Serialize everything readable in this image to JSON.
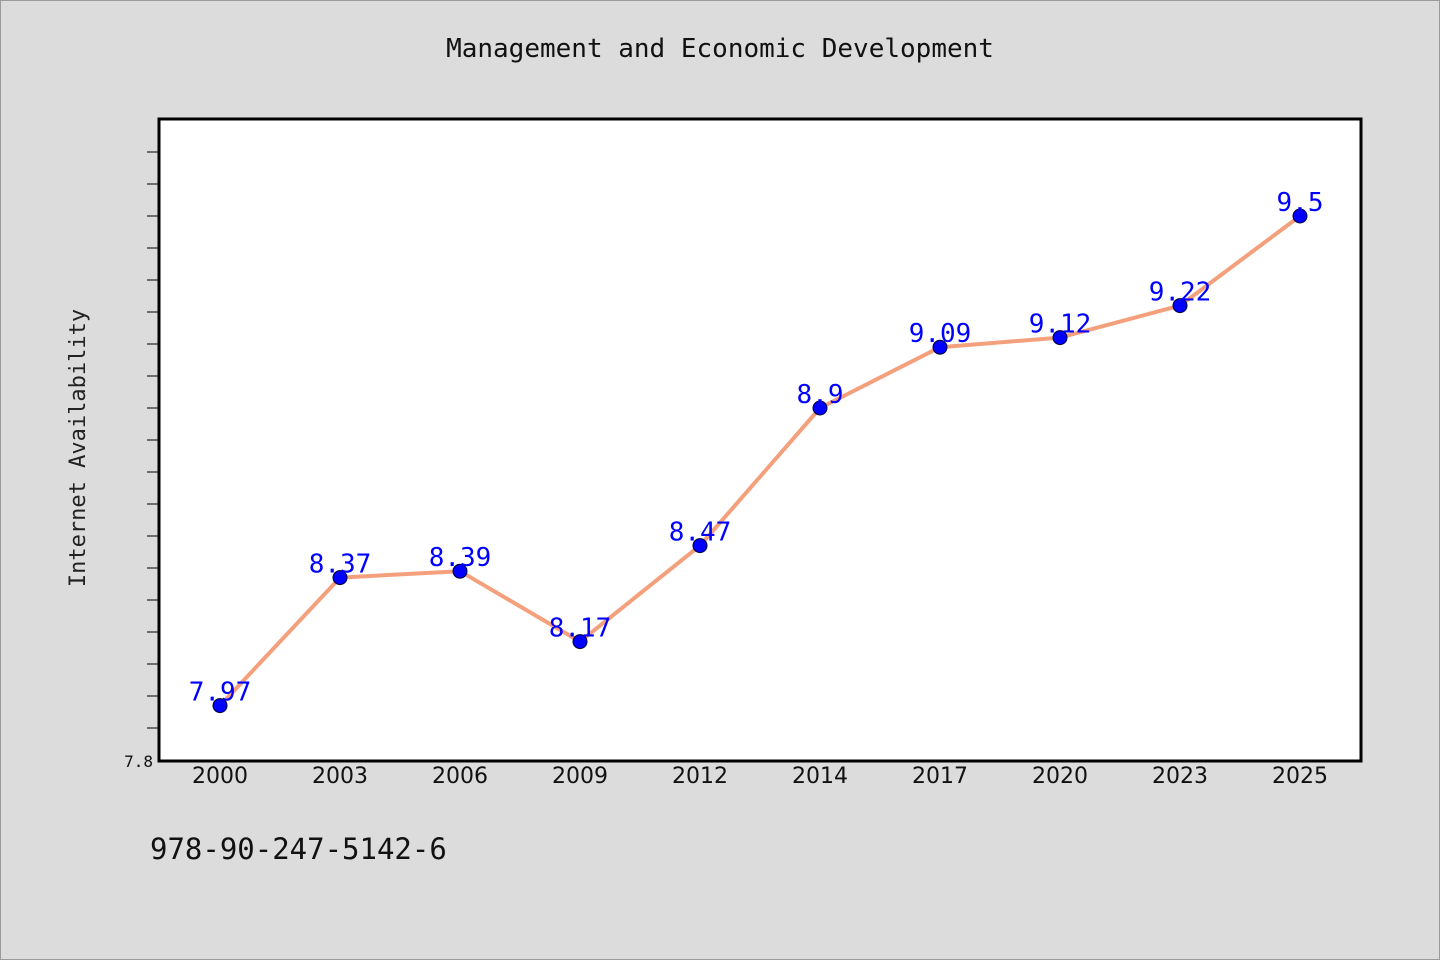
{
  "chart_data": {
    "type": "line",
    "title": "Management and Economic Development",
    "xlabel": "",
    "ylabel": "Internet Availability",
    "categories": [
      "2000",
      "2003",
      "2006",
      "2009",
      "2012",
      "2014",
      "2017",
      "2020",
      "2023",
      "2025"
    ],
    "series": [
      {
        "values": [
          7.97,
          8.37,
          8.39,
          8.17,
          8.47,
          8.9,
          9.09,
          9.12,
          9.22,
          9.5
        ]
      }
    ],
    "data_labels": [
      "7.97",
      "8.37",
      "8.39",
      "8.17",
      "8.47",
      "8.9",
      "9.09",
      "9.12",
      "9.22",
      "9.5"
    ],
    "ylim": [
      7.8,
      9.8
    ],
    "y_tick_labels": [
      "7.8"
    ],
    "grid": false,
    "colors": {
      "line": "#f4a07c",
      "marker": "#0000ff",
      "label": "#0000ff",
      "background": "#dcdcdc",
      "plot_background": "#ffffff"
    }
  },
  "footer": {
    "isbn": "978-90-247-5142-6"
  }
}
